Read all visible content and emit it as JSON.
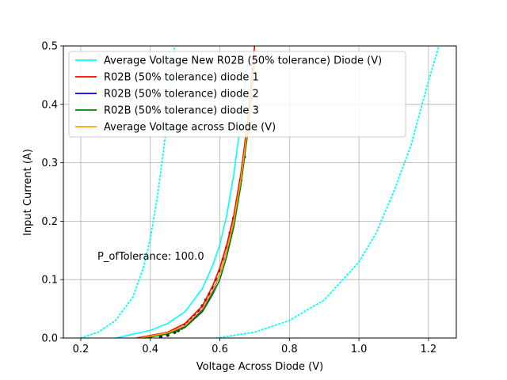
{
  "chart_data": {
    "type": "line",
    "xlabel": "Voltage Across Diode (V)",
    "ylabel": "Input Current (A)",
    "xlim": [
      0.15,
      1.28
    ],
    "ylim": [
      0.0,
      0.5
    ],
    "xticks": [
      "0.2",
      "0.4",
      "0.6",
      "0.8",
      "1.0",
      "1.2"
    ],
    "yticks": [
      "0.0",
      "0.1",
      "0.2",
      "0.3",
      "0.4",
      "0.5"
    ],
    "grid": true,
    "legend_position": "upper-left",
    "annotation": "P_ofTolerance: 100.0",
    "series": [
      {
        "name": "Average Voltage New R02B (50% tolerance) Diode (V)",
        "color": "#00ffff",
        "style": "solid",
        "x": [
          0.3,
          0.4,
          0.45,
          0.5,
          0.55,
          0.58,
          0.6,
          0.62,
          0.64,
          0.66,
          0.68
        ],
        "y": [
          0.0,
          0.013,
          0.025,
          0.045,
          0.085,
          0.125,
          0.16,
          0.21,
          0.28,
          0.37,
          0.47
        ]
      },
      {
        "name": "R02B (50% tolerance) diode 1",
        "color": "#ff0000",
        "style": "solid",
        "x": [
          0.36,
          0.45,
          0.5,
          0.55,
          0.58,
          0.6,
          0.62,
          0.64,
          0.66,
          0.68,
          0.7
        ],
        "y": [
          0.0,
          0.01,
          0.025,
          0.055,
          0.09,
          0.12,
          0.16,
          0.21,
          0.28,
          0.37,
          0.5
        ]
      },
      {
        "name": "R02B (50% tolerance) diode 2",
        "color": "#0000ff",
        "style": "solid",
        "x": [
          0.37,
          0.45,
          0.5,
          0.55,
          0.58,
          0.6,
          0.62,
          0.64,
          0.66,
          0.68,
          0.7
        ],
        "y": [
          0.0,
          0.008,
          0.02,
          0.048,
          0.08,
          0.11,
          0.15,
          0.2,
          0.27,
          0.36,
          0.48
        ]
      },
      {
        "name": "R02B (50% tolerance) diode 3",
        "color": "#008000",
        "style": "solid",
        "x": [
          0.38,
          0.45,
          0.5,
          0.55,
          0.58,
          0.6,
          0.62,
          0.64,
          0.66,
          0.68,
          0.7
        ],
        "y": [
          0.0,
          0.007,
          0.018,
          0.045,
          0.075,
          0.1,
          0.14,
          0.19,
          0.26,
          0.35,
          0.47
        ]
      },
      {
        "name": "Average Voltage across Diode (V)",
        "color": "#ffa500",
        "style": "solid",
        "x": [
          0.37,
          0.45,
          0.5,
          0.55,
          0.58,
          0.6,
          0.62,
          0.64,
          0.66,
          0.68,
          0.7
        ],
        "y": [
          0.0,
          0.009,
          0.021,
          0.05,
          0.082,
          0.11,
          0.15,
          0.2,
          0.27,
          0.36,
          0.48
        ]
      }
    ],
    "tolerance_bounds": [
      {
        "color": "#00ffff",
        "style": "dotted",
        "x": [
          0.2,
          0.25,
          0.3,
          0.35,
          0.38,
          0.4,
          0.42,
          0.44,
          0.46,
          0.47
        ],
        "y": [
          0.0,
          0.01,
          0.03,
          0.07,
          0.12,
          0.17,
          0.24,
          0.33,
          0.44,
          0.5
        ]
      },
      {
        "color": "#00ffff",
        "style": "dotted",
        "x": [
          0.59,
          0.7,
          0.8,
          0.9,
          1.0,
          1.05,
          1.1,
          1.15,
          1.2,
          1.23
        ],
        "y": [
          0.0,
          0.01,
          0.03,
          0.065,
          0.13,
          0.18,
          0.25,
          0.33,
          0.44,
          0.5
        ]
      }
    ],
    "measured_points": {
      "color": "#1a1a1a",
      "x": [
        0.4,
        0.43,
        0.45,
        0.47,
        0.48,
        0.49,
        0.5,
        0.51,
        0.52,
        0.53,
        0.54,
        0.55,
        0.56,
        0.57,
        0.58,
        0.59,
        0.6,
        0.61,
        0.62,
        0.63,
        0.64,
        0.65,
        0.66,
        0.67,
        0.68,
        0.69,
        0.7
      ],
      "y": [
        0.0,
        0.002,
        0.005,
        0.01,
        0.013,
        0.017,
        0.021,
        0.026,
        0.032,
        0.038,
        0.046,
        0.055,
        0.065,
        0.075,
        0.086,
        0.1,
        0.115,
        0.135,
        0.155,
        0.18,
        0.205,
        0.235,
        0.27,
        0.31,
        0.355,
        0.41,
        0.48
      ]
    }
  }
}
